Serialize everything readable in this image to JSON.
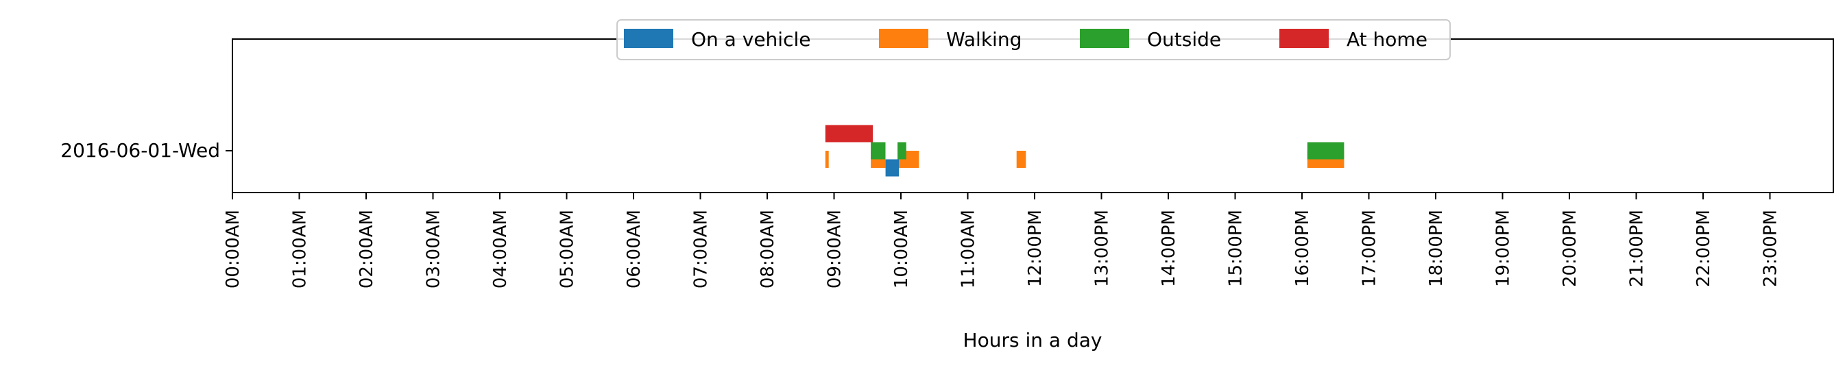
{
  "chart_data": {
    "type": "timeline",
    "title": "",
    "xlabel": "Hours in a day",
    "ylabel": "",
    "xlim": [
      0,
      24
    ],
    "x_tick_values": [
      0,
      1,
      2,
      3,
      4,
      5,
      6,
      7,
      8,
      9,
      10,
      11,
      12,
      13,
      14,
      15,
      16,
      17,
      18,
      19,
      20,
      21,
      22,
      23
    ],
    "x_tick_labels": [
      "00:00AM",
      "01:00AM",
      "02:00AM",
      "03:00AM",
      "04:00AM",
      "05:00AM",
      "06:00AM",
      "07:00AM",
      "08:00AM",
      "09:00AM",
      "10:00AM",
      "11:00AM",
      "12:00PM",
      "13:00PM",
      "14:00PM",
      "15:00PM",
      "16:00PM",
      "17:00PM",
      "18:00PM",
      "19:00PM",
      "20:00PM",
      "21:00PM",
      "22:00PM",
      "23:00PM"
    ],
    "rows": [
      "2016-06-01-Wed"
    ],
    "grid": false,
    "legend_position": "top-center",
    "series": [
      {
        "name": "On a vehicle",
        "color": "#1f77b4",
        "lane": -1,
        "intervals": [
          [
            9.77,
            9.97
          ]
        ]
      },
      {
        "name": "Walking",
        "color": "#ff7f0e",
        "lane": -0.5,
        "intervals": [
          [
            8.87,
            8.92
          ],
          [
            9.55,
            9.77
          ],
          [
            9.97,
            10.27
          ],
          [
            11.73,
            11.87
          ],
          [
            16.08,
            16.63
          ]
        ]
      },
      {
        "name": "Outside",
        "color": "#2ca02c",
        "lane": 0,
        "intervals": [
          [
            9.55,
            9.77
          ],
          [
            9.95,
            10.08
          ],
          [
            16.08,
            16.63
          ]
        ]
      },
      {
        "name": "At home",
        "color": "#d62728",
        "lane": 1,
        "intervals": [
          [
            8.87,
            9.58
          ]
        ]
      }
    ]
  }
}
